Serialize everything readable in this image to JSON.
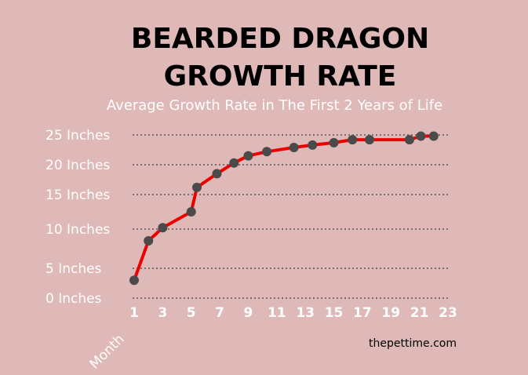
{
  "chart_data": {
    "type": "line",
    "title": "BEARDED DRAGON",
    "title_line2": "GROWTH RATE",
    "subtitle": "Average Growth Rate in The First 2 Years of Life",
    "xlabel": "Month",
    "ylabel": "",
    "x_tick_labels": [
      "1",
      "3",
      "5",
      "7",
      "9",
      "11",
      "13",
      "15",
      "17",
      "19",
      "21",
      "23"
    ],
    "y_tick_labels": [
      "0 Inches",
      "5 Inches",
      "10 Inches",
      "15 Inches",
      "20 Inches",
      "25 Inches"
    ],
    "xlim": [
      1,
      23
    ],
    "ylim": [
      0,
      25
    ],
    "grid": true,
    "series": [
      {
        "x": [
          1,
          2,
          3,
          5,
          5.4,
          6.8,
          8,
          9,
          10.3,
          12.2,
          13.5,
          15,
          16.3,
          17.5,
          20.3,
          21.1,
          22
        ],
        "y": [
          3,
          8.5,
          10.2,
          12.5,
          16.2,
          18.5,
          20.3,
          21.5,
          22.2,
          22.9,
          23.3,
          23.7,
          24.2,
          24.2,
          24.2,
          24.8,
          24.8
        ]
      }
    ],
    "colors": {
      "background": "#dfb8b8",
      "line": "#ee0000",
      "marker": "#4a4a4a",
      "grid": "#555555",
      "text": "#ffffff",
      "title": "#000000"
    }
  },
  "watermark": "thepettime.com"
}
